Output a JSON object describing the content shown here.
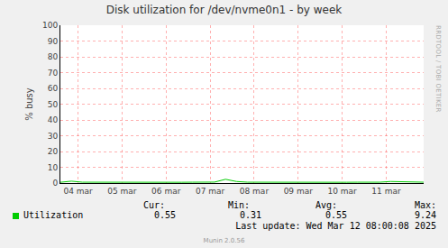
{
  "chart_data": {
    "type": "line",
    "title": "Disk utilization for /dev/nvme0n1 - by week",
    "y_label": "% busy",
    "x": [
      4.1,
      4.35,
      4.6,
      4.85,
      5.1,
      5.35,
      5.6,
      5.85,
      6.1,
      6.35,
      6.6,
      6.85,
      7.1,
      7.35,
      7.6,
      7.85,
      8.1,
      8.35,
      8.6,
      8.85,
      9.1,
      9.35,
      9.6,
      9.85,
      10.1,
      10.35,
      10.6,
      10.85,
      11.1,
      11.35,
      11.6,
      11.85,
      12.1,
      12.35
    ],
    "series": [
      {
        "name": "Utilization",
        "color": "#00cc00",
        "values": [
          0.5,
          1.2,
          0.55,
          0.5,
          0.55,
          0.5,
          0.55,
          0.5,
          0.55,
          0.5,
          0.55,
          0.5,
          0.55,
          0.5,
          0.6,
          2.4,
          1.0,
          0.55,
          0.5,
          0.55,
          0.5,
          0.55,
          0.5,
          0.55,
          0.5,
          0.55,
          0.5,
          0.55,
          0.5,
          0.55,
          1.0,
          0.9,
          1.0,
          0.55
        ]
      }
    ],
    "xlim": [
      4.1,
      12.35
    ],
    "xticks": [
      {
        "value": 4.5,
        "label": "04 mar"
      },
      {
        "value": 5.5,
        "label": "05 mar"
      },
      {
        "value": 6.5,
        "label": "06 mar"
      },
      {
        "value": 7.5,
        "label": "07 mar"
      },
      {
        "value": 8.5,
        "label": "08 mar"
      },
      {
        "value": 9.5,
        "label": "09 mar"
      },
      {
        "value": 10.5,
        "label": "10 mar"
      },
      {
        "value": 11.5,
        "label": "11 mar"
      }
    ],
    "ylim": [
      0,
      100
    ],
    "yticks": [
      0,
      10,
      20,
      30,
      40,
      50,
      60,
      70,
      80,
      90,
      100
    ],
    "grid": true,
    "stats": {
      "headers": [
        "Cur:",
        "Min:",
        "Avg:",
        "Max:"
      ],
      "values": [
        0.55,
        0.31,
        0.55,
        9.24
      ]
    },
    "last_update": "Last update: Wed Mar 12 08:00:08 2025",
    "footer": "Munin 2.0.56",
    "side_text": "RRDTOOL / TOBI OETIKER"
  }
}
